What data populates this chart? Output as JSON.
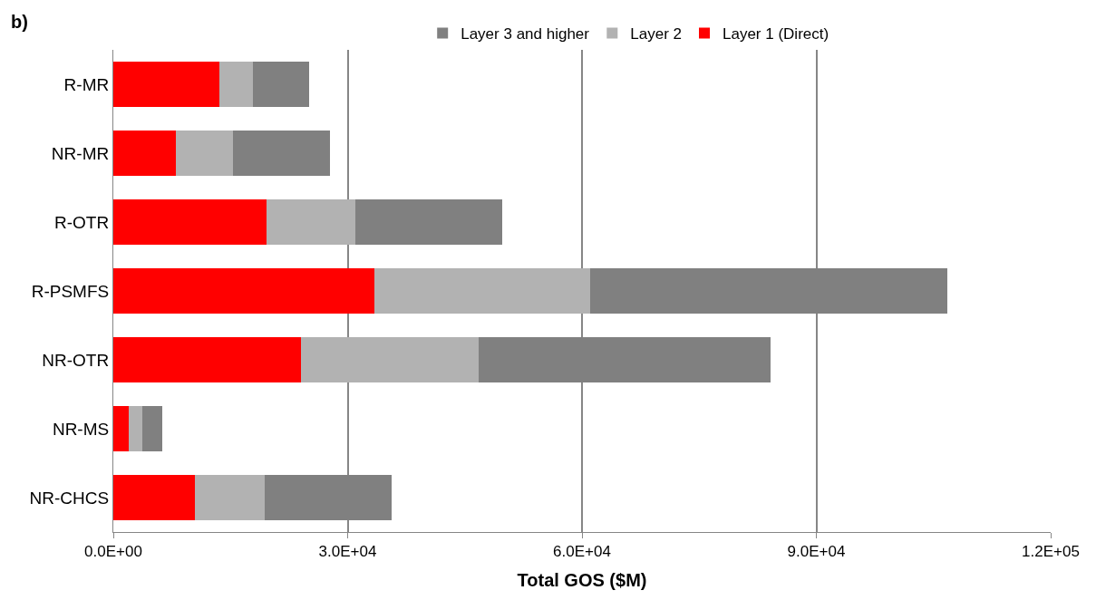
{
  "chart_data": {
    "type": "bar",
    "orientation": "horizontal",
    "stacked": true,
    "title": "b)",
    "xlabel": "Total GOS ($M)",
    "categories": [
      "R-MR",
      "NR-MR",
      "R-OTR",
      "R-PSMFS",
      "NR-OTR",
      "NR-MS",
      "NR-CHCS"
    ],
    "series": [
      {
        "name": "Layer 1 (Direct)",
        "color": "#ff0000",
        "values": [
          13600,
          8000,
          19600,
          33400,
          24000,
          2000,
          10500
        ]
      },
      {
        "name": "Layer 2",
        "color": "#b2b2b2",
        "values": [
          4300,
          7300,
          11400,
          27700,
          22800,
          1700,
          8900
        ]
      },
      {
        "name": "Layer 3 and higher",
        "color": "#808080",
        "values": [
          7200,
          12400,
          18800,
          45700,
          37300,
          2600,
          16200
        ]
      }
    ],
    "xlim": [
      0,
      120000
    ],
    "xticks": [
      {
        "value": 0,
        "label": "0.0E+00"
      },
      {
        "value": 30000,
        "label": "3.0E+04"
      },
      {
        "value": 60000,
        "label": "6.0E+04"
      },
      {
        "value": 90000,
        "label": "9.0E+04"
      },
      {
        "value": 120000,
        "label": "1.2E+05"
      }
    ],
    "grid": "x",
    "legend": "top"
  }
}
